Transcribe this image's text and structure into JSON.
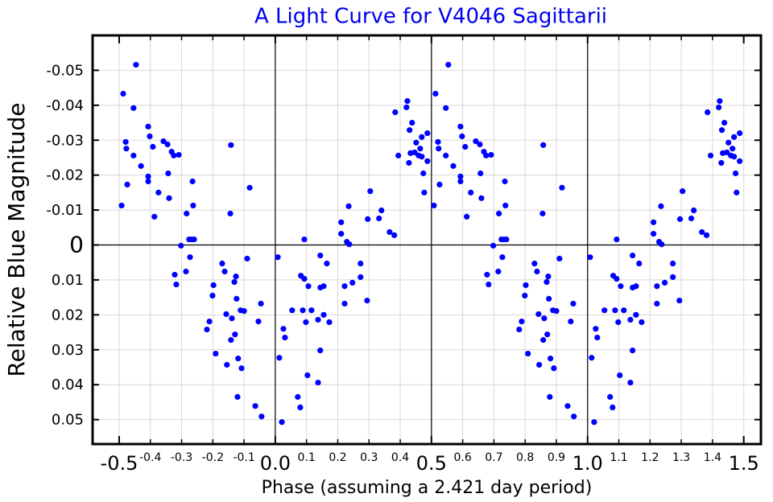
{
  "chart_data": {
    "type": "scatter",
    "title": "A Light Curve for V4046 Sagittarii",
    "xlabel": "Phase (assuming a 2.421 day period)",
    "ylabel": "Relative Blue Magnitude",
    "xlim": [
      -0.585,
      1.555
    ],
    "ylim": [
      -0.06,
      0.057
    ],
    "y_inverted": true,
    "grid": true,
    "xticks": [
      -0.5,
      {
        "value": 0,
        "label": "0.0"
      },
      0.5,
      {
        "value": 1,
        "label": "1.0"
      },
      1.5
    ],
    "xticks_minor": [
      -0.4,
      -0.3,
      -0.2,
      -0.1,
      0.1,
      0.2,
      0.3,
      0.4,
      0.6,
      0.7,
      0.8,
      0.9,
      1.1,
      1.2,
      1.3,
      1.4
    ],
    "yticks": [
      -0.05,
      -0.04,
      -0.03,
      -0.02,
      -0.01,
      0,
      0.01,
      0.02,
      0.03,
      0.04,
      0.05
    ],
    "ref_x": [
      0,
      0.5,
      1
    ],
    "ref_y": [
      0
    ],
    "series": [
      {
        "color": "#0000ff",
        "x": [
          -0.492,
          -0.487,
          -0.479,
          -0.477,
          -0.474,
          -0.454,
          -0.446,
          -0.454,
          -0.43,
          -0.407,
          -0.402,
          -0.407,
          -0.407,
          -0.392,
          -0.387,
          -0.374,
          -0.358,
          -0.345,
          -0.343,
          -0.34,
          -0.332,
          -0.325,
          -0.309,
          -0.302,
          -0.322,
          -0.317,
          -0.286,
          -0.284,
          -0.276,
          -0.273,
          -0.268,
          -0.265,
          -0.263,
          -0.26,
          -0.219,
          -0.211,
          -0.201,
          -0.198,
          -0.191,
          -0.17,
          -0.162,
          -0.157,
          -0.155,
          -0.144,
          -0.142,
          -0.142,
          -0.139,
          -0.131,
          -0.129,
          -0.126,
          -0.124,
          -0.121,
          -0.119,
          -0.111,
          -0.108,
          -0.1,
          -0.09,
          -0.082,
          -0.064,
          -0.054,
          -0.046,
          -0.044,
          0.008,
          0.013,
          0.021,
          0.026,
          0.031,
          0.054,
          0.072,
          0.08,
          0.082,
          0.088,
          0.093,
          0.093,
          0.098,
          0.103,
          0.106,
          0.116,
          0.137,
          0.144,
          0.155,
          0.144,
          0.137,
          0.144,
          0.155,
          0.165,
          0.173,
          0.211,
          0.211,
          0.222,
          0.222,
          0.229,
          0.235,
          0.237,
          0.247,
          0.273,
          0.273,
          0.294,
          0.296,
          0.304,
          0.332,
          0.34,
          0.366,
          0.381,
          0.384,
          0.394,
          0.42,
          0.423,
          0.428,
          0.43,
          0.433,
          0.438,
          0.446,
          0.451,
          0.459,
          0.464,
          0.469,
          0.469,
          0.474,
          0.477,
          0.487,
          0.487,
          0.508,
          0.513,
          0.521,
          0.523,
          0.526,
          0.546,
          0.554,
          0.546,
          0.57,
          0.593,
          0.598,
          0.593,
          0.593,
          0.608,
          0.613,
          0.626,
          0.642,
          0.655,
          0.657,
          0.66,
          0.668,
          0.675,
          0.691,
          0.698,
          0.678,
          0.683,
          0.714,
          0.716,
          0.724,
          0.727,
          0.732,
          0.735,
          0.737,
          0.74,
          0.781,
          0.789,
          0.799,
          0.802,
          0.809,
          0.83,
          0.838,
          0.843,
          0.845,
          0.856,
          0.858,
          0.858,
          0.861,
          0.869,
          0.871,
          0.874,
          0.876,
          0.879,
          0.881,
          0.889,
          0.892,
          0.9,
          0.91,
          0.918,
          0.936,
          0.946,
          0.954,
          0.956,
          1.008,
          1.013,
          1.021,
          1.026,
          1.031,
          1.054,
          1.072,
          1.08,
          1.082,
          1.088,
          1.093,
          1.093,
          1.098,
          1.103,
          1.106,
          1.116,
          1.137,
          1.144,
          1.155,
          1.144,
          1.137,
          1.144,
          1.155,
          1.165,
          1.173,
          1.211,
          1.211,
          1.222,
          1.222,
          1.229,
          1.235,
          1.237,
          1.247,
          1.273,
          1.273,
          1.294,
          1.296,
          1.304,
          1.332,
          1.34,
          1.366,
          1.381,
          1.384,
          1.394,
          1.42,
          1.423,
          1.428,
          1.43,
          1.433,
          1.438,
          1.446,
          1.451,
          1.459,
          1.464,
          1.469,
          1.469,
          1.474,
          1.477,
          1.487,
          1.487
        ],
        "values": [
          -0.0113,
          -0.0433,
          -0.0295,
          -0.0276,
          -0.0173,
          -0.0392,
          -0.0516,
          -0.0256,
          -0.0226,
          -0.0339,
          -0.0311,
          -0.0196,
          -0.0182,
          -0.0281,
          -0.0081,
          -0.015,
          -0.0297,
          -0.0288,
          -0.0205,
          -0.0134,
          -0.0267,
          -0.0256,
          -0.0258,
          0.0002,
          0.0085,
          0.0113,
          0.0076,
          -0.009,
          -0.0016,
          0.0035,
          -0.0016,
          -0.0182,
          -0.0113,
          -0.0016,
          0.0242,
          0.0219,
          0.0145,
          0.0115,
          0.0311,
          0.0053,
          0.0076,
          0.0198,
          0.0343,
          -0.009,
          -0.0286,
          0.0272,
          0.021,
          0.0106,
          0.0256,
          0.009,
          0.0154,
          0.0435,
          0.0325,
          0.0187,
          0.0353,
          0.0189,
          0.0039,
          -0.0164,
          0.0461,
          0.0219,
          0.0168,
          0.0491,
          0.0035,
          0.0323,
          0.0507,
          0.024,
          0.0265,
          0.0187,
          0.0435,
          0.0465,
          0.0088,
          0.0187,
          -0.0016,
          0.0097,
          0.0221,
          0.0373,
          0.0118,
          0.0187,
          0.0214,
          0.0122,
          0.0118,
          0.003,
          0.0394,
          0.0302,
          0.02,
          0.0053,
          0.0221,
          -0.0065,
          -0.0032,
          0.0118,
          0.0168,
          -0.0009,
          -0.0111,
          -0.0002,
          0.0108,
          0.0053,
          0.0092,
          0.0159,
          -0.0074,
          -0.0154,
          -0.0076,
          -0.0099,
          -0.0037,
          -0.0028,
          -0.038,
          -0.0256,
          -0.0394,
          -0.0412,
          -0.0235,
          -0.0329,
          -0.0263,
          -0.035,
          -0.0265,
          -0.0293,
          -0.0256,
          -0.0276,
          -0.0309,
          -0.0253,
          -0.0205,
          -0.015,
          -0.032,
          -0.024,
          -0.0113,
          -0.0433,
          -0.0295,
          -0.0276,
          -0.0173,
          -0.0392,
          -0.0516,
          -0.0256,
          -0.0226,
          -0.0339,
          -0.0311,
          -0.0196,
          -0.0182,
          -0.0281,
          -0.0081,
          -0.015,
          -0.0297,
          -0.0288,
          -0.0205,
          -0.0134,
          -0.0267,
          -0.0256,
          -0.0258,
          0.0002,
          0.0085,
          0.0113,
          0.0076,
          -0.009,
          -0.0016,
          0.0035,
          -0.0016,
          -0.0182,
          -0.0113,
          -0.0016,
          0.0242,
          0.0219,
          0.0145,
          0.0115,
          0.0311,
          0.0053,
          0.0076,
          0.0198,
          0.0343,
          -0.009,
          -0.0286,
          0.0272,
          0.021,
          0.0106,
          0.0256,
          0.009,
          0.0154,
          0.0435,
          0.0325,
          0.0187,
          0.0353,
          0.0189,
          0.0039,
          -0.0164,
          0.0461,
          0.0219,
          0.0168,
          0.0491,
          0.0035,
          0.0323,
          0.0507,
          0.024,
          0.0265,
          0.0187,
          0.0435,
          0.0465,
          0.0088,
          0.0187,
          -0.0016,
          0.0097,
          0.0221,
          0.0373,
          0.0118,
          0.0187,
          0.0214,
          0.0122,
          0.0118,
          0.003,
          0.0394,
          0.0302,
          0.02,
          0.0053,
          0.0221,
          -0.0065,
          -0.0032,
          0.0118,
          0.0168,
          -0.0009,
          -0.0111,
          -0.0002,
          0.0108,
          0.0053,
          0.0092,
          0.0159,
          -0.0074,
          -0.0154,
          -0.0076,
          -0.0099,
          -0.0037,
          -0.0028,
          -0.038,
          -0.0256,
          -0.0394,
          -0.0412,
          -0.0235,
          -0.0329,
          -0.0263,
          -0.035,
          -0.0265,
          -0.0293,
          -0.0256,
          -0.0276,
          -0.0309,
          -0.0253,
          -0.0205,
          -0.015,
          -0.032,
          -0.024
        ]
      }
    ]
  }
}
